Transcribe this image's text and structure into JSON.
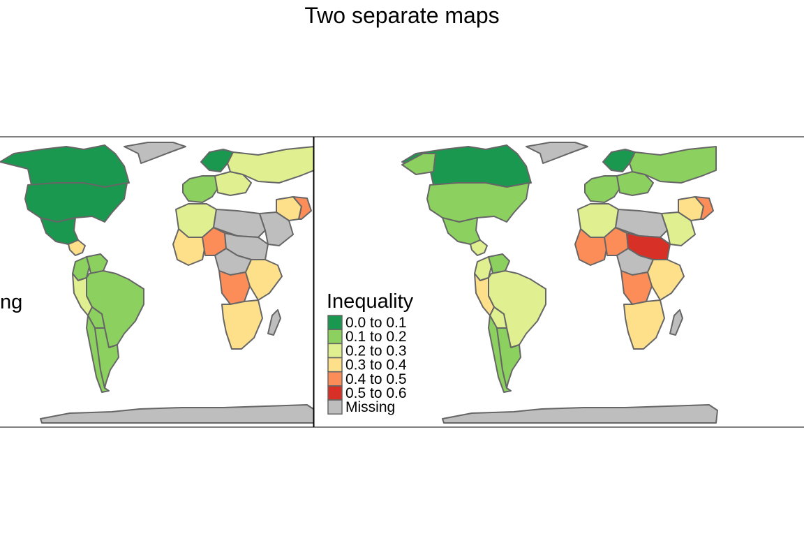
{
  "page": {
    "title": "Two separate maps"
  },
  "colors": {
    "background": "#ffffff",
    "border": "#666666",
    "missing": "#bebebe",
    "bins": [
      "#1a9850",
      "#8cd05f",
      "#e0ef8f",
      "#fee08b",
      "#fc8d59",
      "#d73027"
    ]
  },
  "legend": {
    "title": "Inequality",
    "items": [
      {
        "label": "0.0 to 0.1",
        "color": "#1a9850"
      },
      {
        "label": "0.1 to 0.2",
        "color": "#8cd05f"
      },
      {
        "label": "0.2 to 0.3",
        "color": "#e0ef8f"
      },
      {
        "label": "0.3 to 0.4",
        "color": "#fee08b"
      },
      {
        "label": "0.4 to 0.5",
        "color": "#fc8d59"
      },
      {
        "label": "0.5 to 0.6",
        "color": "#d73027"
      },
      {
        "label": "Missing",
        "color": "#bebebe"
      }
    ],
    "left_panel_visible_fragment": "ng"
  },
  "maps": [
    {
      "name": "left-map",
      "regions": {
        "canada": "#1a9850",
        "usa": "#1a9850",
        "mexico": "#1a9850",
        "greenland": "#bebebe",
        "central_america": "#fee08b",
        "venezuela": "#8cd05f",
        "colombia": "#8cd05f",
        "brazil": "#8cd05f",
        "peru": "#e0ef8f",
        "bolivia": "#8cd05f",
        "argentina": "#8cd05f",
        "chile": "#8cd05f",
        "scandinavia": "#1a9850",
        "western_europe": "#8cd05f",
        "eastern_europe": "#e0ef8f",
        "russia": "#e0ef8f",
        "north_africa": "#e0ef8f",
        "libya_egypt": "#bebebe",
        "west_africa": "#fee08b",
        "nigeria": "#fc8d59",
        "chad_sudan": "#bebebe",
        "central_africa": "#bebebe",
        "drc": "#fc8d59",
        "east_africa": "#fee08b",
        "southern_africa": "#fee08b",
        "madagascar": "#bebebe",
        "middle_east": "#bebebe",
        "iran": "#fee08b",
        "afghanistan": "#fc8d59",
        "antarctica": "#bebebe"
      }
    },
    {
      "name": "right-map",
      "regions": {
        "canada": "#1a9850",
        "usa": "#8cd05f",
        "mexico": "#8cd05f",
        "greenland": "#bebebe",
        "alaska": "#8cd05f",
        "central_america": "#e0ef8f",
        "venezuela": "#8cd05f",
        "colombia": "#e0ef8f",
        "brazil": "#e0ef8f",
        "peru": "#fee08b",
        "bolivia": "#e0ef8f",
        "argentina": "#8cd05f",
        "chile": "#8cd05f",
        "scandinavia": "#1a9850",
        "western_europe": "#8cd05f",
        "eastern_europe": "#8cd05f",
        "russia": "#8cd05f",
        "north_africa": "#e0ef8f",
        "libya_egypt": "#bebebe",
        "west_africa": "#fc8d59",
        "nigeria": "#fc8d59",
        "chad_sudan": "#d73027",
        "central_africa": "#bebebe",
        "drc": "#fc8d59",
        "east_africa": "#fee08b",
        "southern_africa": "#fee08b",
        "madagascar": "#bebebe",
        "middle_east": "#e0ef8f",
        "iran": "#fee08b",
        "afghanistan": "#fc8d59",
        "india": "#fee08b",
        "china": "#8cd05f",
        "mongolia": "#e0ef8f",
        "southeast_asia": "#8cd05f",
        "indonesia": "#e0ef8f",
        "australia": "#1a9850",
        "antarctica": "#bebebe"
      }
    }
  ]
}
